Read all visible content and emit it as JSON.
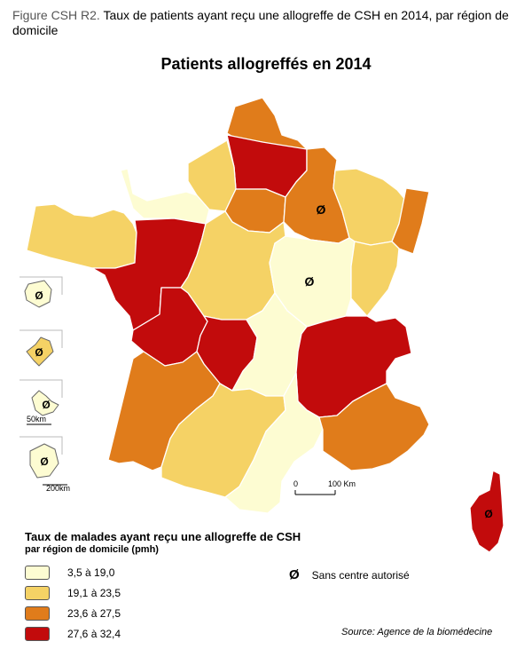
{
  "figure": {
    "label": "Figure CSH R2.",
    "title": "Taux de patients ayant reçu une allogreffe de CSH en 2014, par région de domicile"
  },
  "map_title": "Patients allogreffés en 2014",
  "legend": {
    "title": "Taux de malades ayant reçu une allogreffe de CSH",
    "subtitle": "par région de domicile (pmh)",
    "classes": [
      {
        "label": "3,5 à 19,0",
        "color": "#fdfcd2"
      },
      {
        "label": "19,1 à 23,5",
        "color": "#f5d265"
      },
      {
        "label": "23,6 à 27,5",
        "color": "#e07c1b"
      },
      {
        "label": "27,6 à 32,4",
        "color": "#c20b0c"
      }
    ],
    "no_centre_symbol": "Ø",
    "no_centre_label": "Sans centre autorisé"
  },
  "scale": {
    "zero": "0",
    "km": "100 Km"
  },
  "insets": {
    "scale_small": "50km",
    "scale_large": "200km"
  },
  "regions_class": {
    "nord_pas_de_calais": 2,
    "picardie": 3,
    "haute_normandie": 1,
    "basse_normandie": 0,
    "ile_de_france": 2,
    "champagne_ardenne": 2,
    "lorraine": 1,
    "alsace": 2,
    "bretagne": 1,
    "pays_de_la_loire": 3,
    "centre": 1,
    "bourgogne": 0,
    "franche_comte": 1,
    "poitou_charentes": 3,
    "limousin": 3,
    "auvergne": 0,
    "rhone_alpes": 3,
    "aquitaine": 2,
    "midi_pyrenees": 1,
    "languedoc_roussillon": 0,
    "paca": 2,
    "corse": 3,
    "guadeloupe": 0,
    "martinique": 1,
    "guyane": 0,
    "reunion": 0
  },
  "source": "Source: Agence de la biomédecine"
}
